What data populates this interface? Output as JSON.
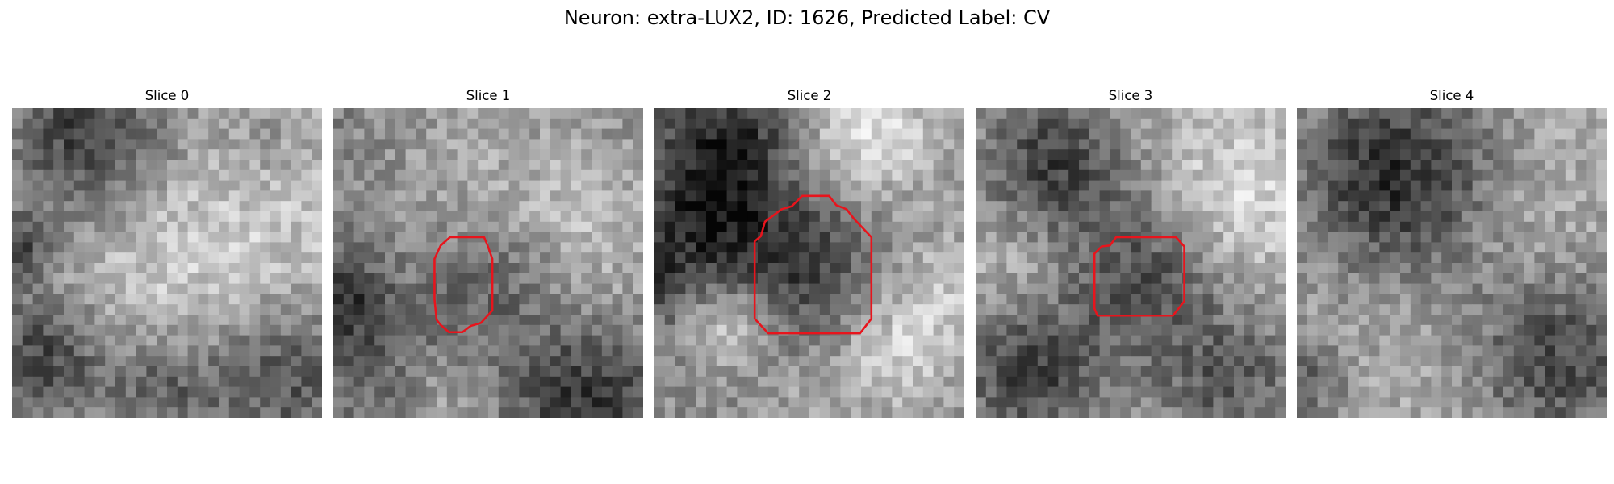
{
  "figure": {
    "title": "Neuron: extra-LUX2, ID: 1626, Predicted Label: CV"
  },
  "panels": [
    {
      "title": "Slice 0",
      "icon": "grayscale-microscopy-slice",
      "has_contour": false
    },
    {
      "title": "Slice 1",
      "icon": "grayscale-microscopy-slice",
      "has_contour": true
    },
    {
      "title": "Slice 2",
      "icon": "grayscale-microscopy-slice",
      "has_contour": true
    },
    {
      "title": "Slice 3",
      "icon": "grayscale-microscopy-slice",
      "has_contour": true
    },
    {
      "title": "Slice 4",
      "icon": "grayscale-microscopy-slice",
      "has_contour": false
    }
  ],
  "colors": {
    "contour": "#e8141c",
    "background": "#ffffff"
  }
}
